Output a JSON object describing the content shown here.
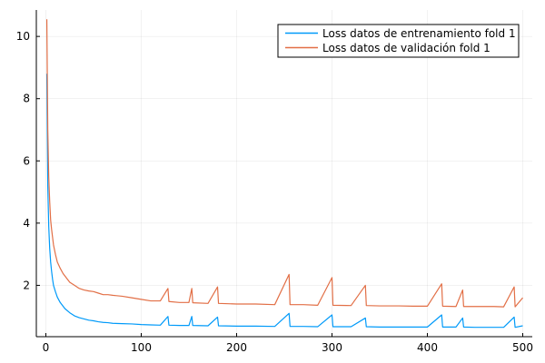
{
  "chart_data": {
    "type": "line",
    "title": "",
    "xlabel": "",
    "ylabel": "",
    "xlim": [
      -10,
      510
    ],
    "ylim": [
      0.35,
      10.85
    ],
    "x_ticks": [
      0,
      100,
      200,
      300,
      400,
      500
    ],
    "y_ticks": [
      2,
      4,
      6,
      8,
      10
    ],
    "grid": true,
    "legend_position": "top-right",
    "series": [
      {
        "name": "Loss datos de entrenamiento fold 1",
        "color": "#009af9",
        "points": [
          [
            1,
            8.8
          ],
          [
            2,
            5.2
          ],
          [
            3,
            3.9
          ],
          [
            4,
            3.2
          ],
          [
            5,
            2.75
          ],
          [
            6,
            2.45
          ],
          [
            7,
            2.2
          ],
          [
            8,
            2.0
          ],
          [
            10,
            1.8
          ],
          [
            12,
            1.62
          ],
          [
            15,
            1.45
          ],
          [
            18,
            1.33
          ],
          [
            20,
            1.25
          ],
          [
            25,
            1.12
          ],
          [
            30,
            1.02
          ],
          [
            35,
            0.96
          ],
          [
            40,
            0.92
          ],
          [
            45,
            0.88
          ],
          [
            50,
            0.86
          ],
          [
            55,
            0.83
          ],
          [
            60,
            0.81
          ],
          [
            65,
            0.8
          ],
          [
            70,
            0.78
          ],
          [
            80,
            0.77
          ],
          [
            90,
            0.76
          ],
          [
            100,
            0.74
          ],
          [
            110,
            0.73
          ],
          [
            120,
            0.72
          ],
          [
            128,
            1.0
          ],
          [
            129,
            0.72
          ],
          [
            140,
            0.71
          ],
          [
            150,
            0.71
          ],
          [
            153,
            1.0
          ],
          [
            154,
            0.71
          ],
          [
            170,
            0.7
          ],
          [
            180,
            0.98
          ],
          [
            181,
            0.7
          ],
          [
            200,
            0.69
          ],
          [
            220,
            0.69
          ],
          [
            240,
            0.68
          ],
          [
            255,
            1.1
          ],
          [
            256,
            0.68
          ],
          [
            270,
            0.68
          ],
          [
            285,
            0.67
          ],
          [
            300,
            1.05
          ],
          [
            301,
            0.67
          ],
          [
            320,
            0.67
          ],
          [
            335,
            0.95
          ],
          [
            336,
            0.67
          ],
          [
            350,
            0.66
          ],
          [
            370,
            0.66
          ],
          [
            385,
            0.66
          ],
          [
            400,
            0.66
          ],
          [
            415,
            1.05
          ],
          [
            416,
            0.66
          ],
          [
            430,
            0.66
          ],
          [
            437,
            0.95
          ],
          [
            438,
            0.66
          ],
          [
            450,
            0.65
          ],
          [
            470,
            0.65
          ],
          [
            480,
            0.65
          ],
          [
            491,
            0.98
          ],
          [
            492,
            0.65
          ],
          [
            500,
            0.7
          ]
        ]
      },
      {
        "name": "Loss datos de validación fold 1",
        "color": "#e26f46",
        "points": [
          [
            1,
            10.55
          ],
          [
            2,
            7.0
          ],
          [
            3,
            5.5
          ],
          [
            4,
            4.7
          ],
          [
            5,
            4.1
          ],
          [
            6,
            3.8
          ],
          [
            7,
            3.55
          ],
          [
            8,
            3.3
          ],
          [
            10,
            3.0
          ],
          [
            12,
            2.75
          ],
          [
            15,
            2.55
          ],
          [
            18,
            2.38
          ],
          [
            20,
            2.3
          ],
          [
            25,
            2.1
          ],
          [
            30,
            2.0
          ],
          [
            35,
            1.9
          ],
          [
            40,
            1.85
          ],
          [
            45,
            1.82
          ],
          [
            50,
            1.8
          ],
          [
            55,
            1.75
          ],
          [
            60,
            1.7
          ],
          [
            65,
            1.7
          ],
          [
            70,
            1.68
          ],
          [
            80,
            1.65
          ],
          [
            90,
            1.6
          ],
          [
            100,
            1.55
          ],
          [
            110,
            1.5
          ],
          [
            120,
            1.5
          ],
          [
            128,
            1.9
          ],
          [
            129,
            1.48
          ],
          [
            140,
            1.45
          ],
          [
            150,
            1.45
          ],
          [
            153,
            1.9
          ],
          [
            154,
            1.44
          ],
          [
            170,
            1.42
          ],
          [
            180,
            1.95
          ],
          [
            181,
            1.42
          ],
          [
            200,
            1.4
          ],
          [
            220,
            1.4
          ],
          [
            240,
            1.38
          ],
          [
            255,
            2.35
          ],
          [
            256,
            1.38
          ],
          [
            270,
            1.38
          ],
          [
            285,
            1.36
          ],
          [
            300,
            2.25
          ],
          [
            301,
            1.36
          ],
          [
            320,
            1.35
          ],
          [
            335,
            2.0
          ],
          [
            336,
            1.35
          ],
          [
            350,
            1.34
          ],
          [
            370,
            1.34
          ],
          [
            385,
            1.33
          ],
          [
            400,
            1.33
          ],
          [
            415,
            2.05
          ],
          [
            416,
            1.33
          ],
          [
            430,
            1.32
          ],
          [
            437,
            1.85
          ],
          [
            438,
            1.32
          ],
          [
            450,
            1.32
          ],
          [
            470,
            1.32
          ],
          [
            480,
            1.31
          ],
          [
            491,
            1.95
          ],
          [
            492,
            1.31
          ],
          [
            500,
            1.6
          ]
        ]
      }
    ]
  }
}
